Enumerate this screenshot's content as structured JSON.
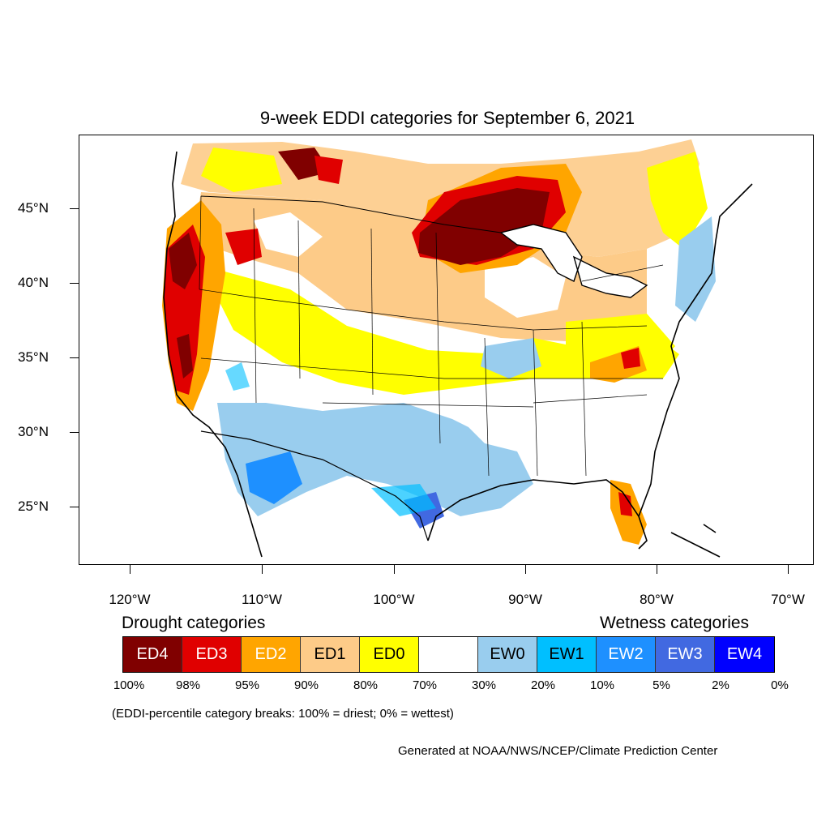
{
  "title": "9-week EDDI categories for September 6, 2021",
  "lat_labels": [
    "45°N",
    "40°N",
    "35°N",
    "30°N",
    "25°N"
  ],
  "lon_labels": [
    "120°W",
    "110°W",
    "100°W",
    "90°W",
    "80°W",
    "70°W"
  ],
  "drought_heading": "Drought categories",
  "wetness_heading": "Wetness categories",
  "legend": [
    {
      "label": "ED4",
      "color": "#800000",
      "text_color": "#ffffff"
    },
    {
      "label": "ED3",
      "color": "#e00000",
      "text_color": "#ffffff"
    },
    {
      "label": "ED2",
      "color": "#ffa500",
      "text_color": "#ffffff"
    },
    {
      "label": "ED1",
      "color": "#fdcb88",
      "text_color": "#000000"
    },
    {
      "label": "ED0",
      "color": "#ffff00",
      "text_color": "#000000"
    },
    {
      "label": "",
      "color": "#ffffff",
      "text_color": "#000000"
    },
    {
      "label": "EW0",
      "color": "#99cdee",
      "text_color": "#000000"
    },
    {
      "label": "EW1",
      "color": "#00bfff",
      "text_color": "#000000"
    },
    {
      "label": "EW2",
      "color": "#1e90ff",
      "text_color": "#ffffff"
    },
    {
      "label": "EW3",
      "color": "#4169e1",
      "text_color": "#ffffff"
    },
    {
      "label": "EW4",
      "color": "#0000ff",
      "text_color": "#ffffff"
    }
  ],
  "breaks": [
    "100%",
    "98%",
    "95%",
    "90%",
    "80%",
    "70%",
    "30%",
    "20%",
    "10%",
    "5%",
    "2%",
    "0%"
  ],
  "note": "(EDDI-percentile category breaks: 100% = driest; 0% = wettest)",
  "credit": "Generated at NOAA/NWS/NCEP/Climate Prediction Center"
}
